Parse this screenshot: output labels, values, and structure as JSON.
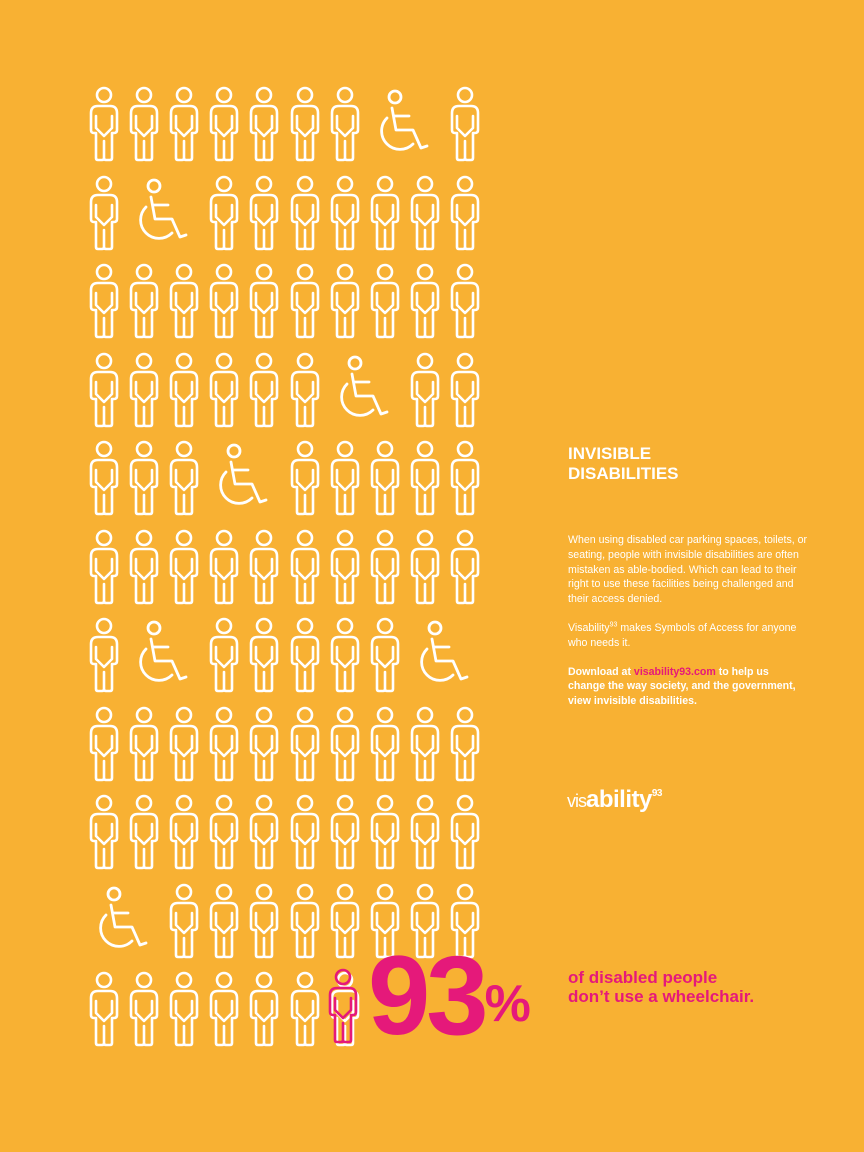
{
  "colors": {
    "background": "#F8B133",
    "figure_stroke": "#FFFFFF",
    "accent": "#E5197A",
    "text": "#FFFFFF"
  },
  "grid": {
    "icons": [
      "person-icon",
      "wheelchair-icon"
    ],
    "rows": [
      [
        "p",
        "p",
        "p",
        "p",
        "p",
        "p",
        "p",
        "w",
        "p"
      ],
      [
        "p",
        "w",
        "p",
        "p",
        "p",
        "p",
        "p",
        "p",
        "p"
      ],
      [
        "p",
        "p",
        "p",
        "p",
        "p",
        "p",
        "p",
        "p",
        "p",
        "p"
      ],
      [
        "p",
        "p",
        "p",
        "p",
        "p",
        "p",
        "w",
        "p",
        "p"
      ],
      [
        "p",
        "p",
        "p",
        "w",
        "p",
        "p",
        "p",
        "p",
        "p"
      ],
      [
        "p",
        "p",
        "p",
        "p",
        "p",
        "p",
        "p",
        "p",
        "p",
        "p"
      ],
      [
        "p",
        "w",
        "p",
        "p",
        "p",
        "p",
        "p",
        "w"
      ],
      [
        "p",
        "p",
        "p",
        "p",
        "p",
        "p",
        "p",
        "p",
        "p",
        "p"
      ],
      [
        "p",
        "p",
        "p",
        "p",
        "p",
        "p",
        "p",
        "p",
        "p",
        "p"
      ],
      [
        "w",
        "p",
        "p",
        "p",
        "p",
        "p",
        "p",
        "p",
        "p"
      ],
      [
        "p",
        "p",
        "p",
        "p",
        "p",
        "p",
        "p",
        "hp"
      ]
    ]
  },
  "stat": {
    "number": "93",
    "percent_sign": "%"
  },
  "heading": {
    "line1": "INVISIBLE",
    "line2": "DISABILITIES"
  },
  "body": {
    "paragraph1": "When using disabled car parking spaces, toilets, or seating, people with invisible disabilities are often mistaken as able-bodied. Which can lead to their right to use these facilities being challenged and their access denied.",
    "paragraph2_prefix": "Visability",
    "paragraph2_sup": "93",
    "paragraph2_rest": " makes Symbols of Access for anyone who needs it.",
    "cta_prefix": "Download at ",
    "cta_link": "visability93.com",
    "cta_rest": " to help us change the way society, and the government, view invisible disabilities."
  },
  "logo": {
    "part1": "vis",
    "part2": "ability",
    "sup": "93"
  },
  "tagline": {
    "line1": "of disabled people",
    "line2": "don’t use a wheelchair."
  }
}
